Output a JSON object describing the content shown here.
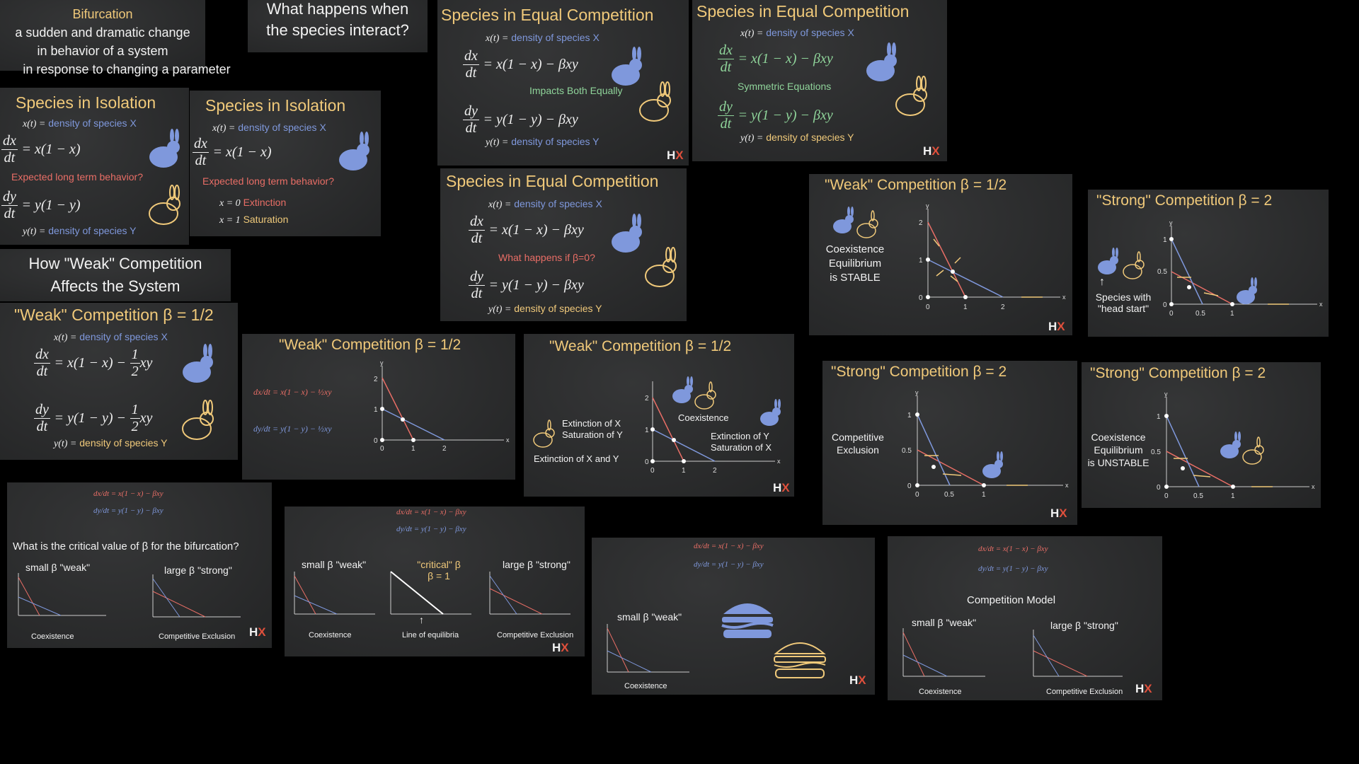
{
  "bifurcation": {
    "title": "Bifurcation",
    "l1": "a sudden and dramatic change",
    "l2": "in behavior of a system",
    "l3": "in response to changing a parameter"
  },
  "question": {
    "l1": "What happens when",
    "l2": "the species interact?"
  },
  "isolation": {
    "title": "Species in Isolation",
    "density_x_prefix": "x(t) =",
    "density_x": "density of species X",
    "density_y_prefix": "y(t) =",
    "density_y": "density of species Y",
    "eq_x": "= x(1 − x)",
    "eq_y": "= y(1 − y)",
    "ddt_x_n": "dx",
    "ddt_x_d": "dt",
    "ddt_y_n": "dy",
    "ddt_y_d": "dt",
    "expected": "Expected long term behavior?",
    "x0": "x = 0",
    "x0_label": "Extinction",
    "x1": "x = 1",
    "x1_label": "Saturation"
  },
  "equal": {
    "title": "Species in Equal Competition",
    "eq_x": "= x(1 − x) − βxy",
    "eq_y": "= y(1 − y) − βxy",
    "impacts": "Impacts Both Equally",
    "symmetric": "Symmetric Equations",
    "beta0": "What happens if β=0?"
  },
  "weak_title": "\"Weak\" Competition β = 1/2",
  "strong_title": "\"Strong\" Competition β = 2",
  "weak_affects": {
    "l1": "How \"Weak\" Competition",
    "l2": "Affects the System"
  },
  "weak_eq": {
    "eq_x": "= x(1 − x) −",
    "eq_y": "= y(1 − y) −",
    "half_n": "1",
    "half_d": "2",
    "xy": "xy"
  },
  "weak_plot": {
    "eq_x_small": "dx/dt = x(1 − x) − ½xy",
    "eq_y_small": "dy/dt = y(1 − y) − ½xy"
  },
  "regions": {
    "ext_x": "Extinction of X",
    "sat_y": "Saturation of Y",
    "coex": "Coexistence",
    "ext_y": "Extinction of Y",
    "sat_x": "Saturation of X",
    "ext_xy": "Extinction of X and Y"
  },
  "stable": {
    "l1": "Coexistence",
    "l2": "Equilibrium",
    "l3": "is STABLE"
  },
  "unstable": {
    "l1": "Coexistence",
    "l2": "Equilibrium",
    "l3": "is UNSTABLE"
  },
  "headstart": {
    "l1": "Species with",
    "l2": "\"head start\""
  },
  "comp_excl": {
    "l1": "Competitive",
    "l2": "Exclusion"
  },
  "critical_q": "What is the critical value of β for the bifurcation?",
  "small_weak": "small β \"weak\"",
  "large_strong": "large β \"strong\"",
  "critical": {
    "l1": "\"critical\" β",
    "l2": "β = 1"
  },
  "line_eq": "Line of equilibria",
  "coexistence": "Coexistence",
  "competitive_exclusion": "Competitive Exclusion",
  "competition_model": "Competition Model",
  "small_eq_x": "dx/dt = x(1 − x) − βxy",
  "small_eq_y": "dy/dt = y(1 − y) − βxy",
  "axis": {
    "x": "x",
    "y": "y",
    "t0": "0",
    "t05": "0.5",
    "t1": "1",
    "t2": "2"
  },
  "logo": {
    "h": "H",
    "x": "X"
  },
  "colors": {
    "bg": "#000000",
    "slide": "#2a2b2c",
    "title": "#f0c97a",
    "blue": "#7f98dc",
    "red": "#e96e66",
    "green": "#8fd49a"
  }
}
